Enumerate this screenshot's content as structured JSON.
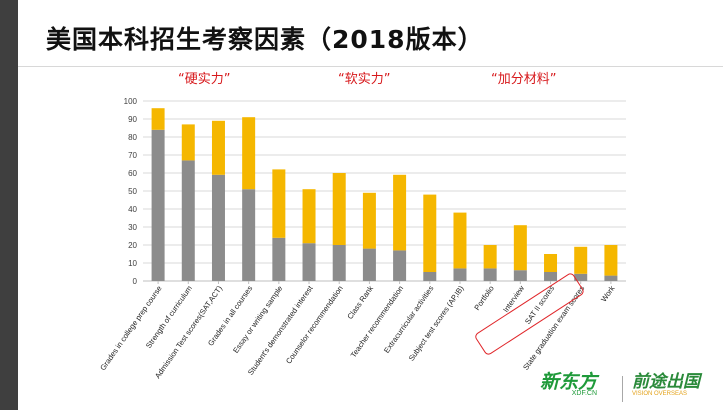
{
  "slide": {
    "title": "美国本科招生考察因素（2018版本）",
    "group_labels": [
      "“硬实力”",
      "“软实力”",
      "“加分材料”"
    ]
  },
  "logos": {
    "xdf_main": "新东方",
    "xdf_sub": "XDF.CN",
    "vision_main": "前途出国",
    "vision_sub": "VISION OVERSEAS"
  },
  "colors": {
    "bottom_series": "#8c8c8c",
    "top_series": "#f5b700",
    "grid": "#d9d9d9",
    "group_label": "#d7191c",
    "highlight": "#e0262a",
    "left_bar": "#3f3f3f"
  },
  "chart_data": {
    "type": "bar",
    "stacked": true,
    "categories": [
      "Grades in college prep course",
      "Strength of curriculum",
      "Admission Test scores(SAT,ACT)",
      "Grades in all courses",
      "Essay or writing sample",
      "Student's demonstrated interest",
      "Counselor recommendation",
      "Class Rank",
      "Teacher recommendation",
      "Extracurricular activities",
      "Subject test scores (AP,IB)",
      "Portfolio",
      "Interview",
      "SAT II scores",
      "State graduation exam scores",
      "Work"
    ],
    "series": [
      {
        "values": [
          84,
          67,
          59,
          51,
          24,
          21,
          20,
          18,
          17,
          5,
          7,
          7,
          6,
          5,
          4,
          3
        ]
      },
      {
        "values": [
          12,
          20,
          30,
          40,
          38,
          30,
          40,
          31,
          42,
          43,
          31,
          13,
          25,
          10,
          15,
          17
        ]
      }
    ],
    "ylim": [
      0,
      100
    ],
    "yticks": [
      0,
      10,
      20,
      30,
      40,
      50,
      60,
      70,
      80,
      90,
      100
    ],
    "grid": true,
    "legend": "none",
    "highlighted_categories": [
      "Interview",
      "SAT II scores"
    ]
  }
}
